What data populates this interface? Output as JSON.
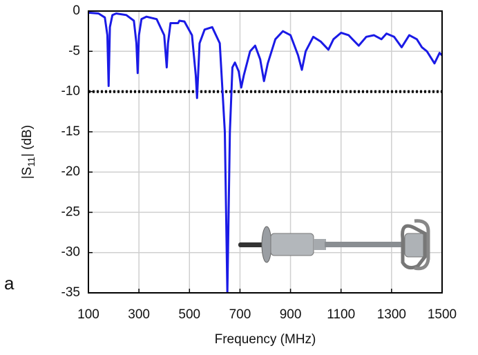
{
  "chart_data": {
    "type": "line",
    "panel_label": "a",
    "xlabel": "Frequency (MHz)",
    "ylabel_parts": [
      "|S",
      "11",
      "| (dB)"
    ],
    "xlim": [
      100,
      1500
    ],
    "xticks": [
      100,
      300,
      500,
      700,
      900,
      1100,
      1300,
      1500
    ],
    "ylim": [
      -35,
      0
    ],
    "yticks": [
      0,
      -5,
      -10,
      -15,
      -20,
      -25,
      -30,
      -35
    ],
    "grid": true,
    "threshold": -10,
    "series": [
      {
        "color": "#1a1ae6",
        "x": [
          100,
          140,
          165,
          175,
          180,
          185,
          195,
          210,
          250,
          280,
          290,
          295,
          300,
          310,
          330,
          370,
          400,
          410,
          415,
          425,
          440,
          455,
          460,
          480,
          510,
          525,
          530,
          540,
          560,
          590,
          620,
          640,
          650,
          660,
          670,
          680,
          695,
          705,
          715,
          740,
          760,
          780,
          795,
          810,
          840,
          870,
          900,
          930,
          945,
          960,
          990,
          1020,
          1050,
          1070,
          1100,
          1130,
          1170,
          1200,
          1230,
          1260,
          1280,
          1310,
          1340,
          1370,
          1400,
          1420,
          1440,
          1470,
          1490,
          1500
        ],
        "values": [
          -0.2,
          -0.3,
          -0.8,
          -3,
          -9.3,
          -2,
          -0.5,
          -0.3,
          -0.5,
          -1.2,
          -4,
          -7.7,
          -3,
          -1,
          -0.7,
          -1,
          -3,
          -7,
          -4,
          -1.5,
          -1.5,
          -1.5,
          -1.2,
          -1.3,
          -3,
          -8,
          -10.8,
          -4,
          -2.3,
          -2,
          -4,
          -15,
          -35,
          -15,
          -7,
          -6.4,
          -7.5,
          -9.5,
          -8,
          -5,
          -4.3,
          -6,
          -8.7,
          -6.5,
          -3.5,
          -2.5,
          -3,
          -5.5,
          -7.3,
          -5,
          -3.2,
          -3.8,
          -4.8,
          -3.5,
          -2.7,
          -3,
          -4.3,
          -3.2,
          -3,
          -3.5,
          -2.8,
          -3.2,
          -4.5,
          -3,
          -3.5,
          -4.5,
          -5,
          -6.5,
          -5.2,
          -5.5
        ]
      }
    ]
  }
}
